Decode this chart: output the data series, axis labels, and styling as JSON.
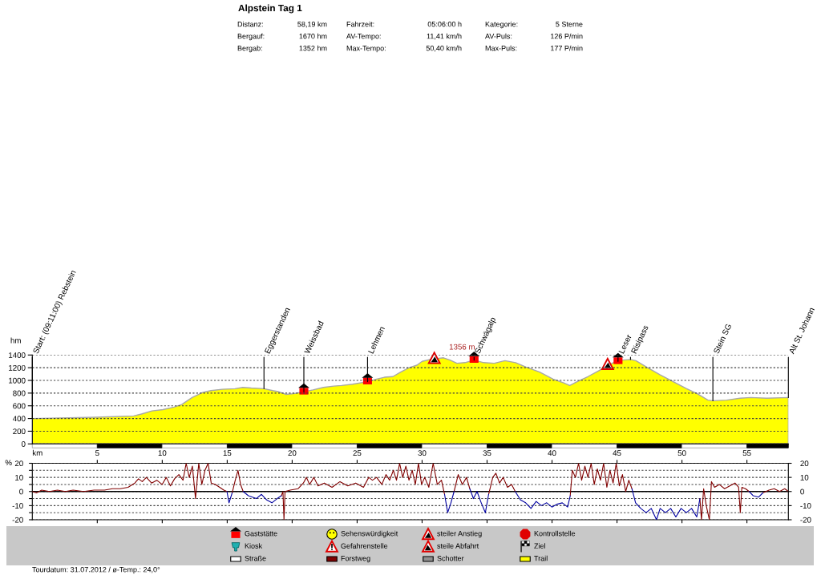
{
  "chart_data": [
    {
      "type": "other",
      "title": "Alpstein Tag 1",
      "annotations": [
        "Distanz:",
        "58,19 km",
        "Fahrzeit:",
        "05:06:00 h",
        "Kategorie:",
        "5 Sterne",
        "Bergauf:",
        "1670 hm",
        "AV-Tempo:",
        "11,41 km/h",
        "AV-Puls:",
        "126 P/min",
        "Bergab:",
        "1352 hm",
        "Max-Tempo:",
        "50,40 km/h",
        "Max-Puls:",
        "177 P/min"
      ]
    },
    {
      "type": "area",
      "x": [
        0,
        4.9,
        6.35,
        7.8,
        8.4,
        9.2,
        10.05,
        10.9,
        11.5,
        12.3,
        13.1,
        13.75,
        14.6,
        15.6,
        16.2,
        16.85,
        17.83,
        18.5,
        19.0,
        19.5,
        20.1,
        20.9,
        21.6,
        22.4,
        23.2,
        23.8,
        24.65,
        25.8,
        26.5,
        27.1,
        27.75,
        28.35,
        29.0,
        29.6,
        30.0,
        30.6,
        31.65,
        32.15,
        32.68,
        33.3,
        34.0,
        34.74,
        35.55,
        36.38,
        37.2,
        38.0,
        39.05,
        40.08,
        40.9,
        41.36,
        41.93,
        42.76,
        43.58,
        44.8,
        45.43,
        46.04,
        46.45,
        47.28,
        48.3,
        49.33,
        50.36,
        51.18,
        52.0,
        52.38,
        53.44,
        54.47,
        55.3,
        56.53,
        58.19
      ],
      "series": [
        {
          "color": "#ffff00",
          "values": [
            400,
            420,
            430,
            440,
            470,
            520,
            540,
            580,
            620,
            730,
            810,
            840,
            860,
            870,
            890,
            880,
            870,
            840,
            820,
            780,
            790,
            820,
            850,
            890,
            910,
            920,
            940,
            980,
            1020,
            1050,
            1060,
            1130,
            1200,
            1240,
            1300,
            1330,
            1356,
            1320,
            1270,
            1280,
            1320,
            1280,
            1270,
            1310,
            1280,
            1210,
            1130,
            1020,
            960,
            920,
            980,
            1060,
            1150,
            1290,
            1320,
            1330,
            1310,
            1210,
            1090,
            980,
            870,
            790,
            690,
            680,
            690,
            720,
            730,
            720,
            730
          ]
        }
      ],
      "xlim": [
        0,
        58.19
      ],
      "xticks": [
        5,
        10,
        15,
        20,
        25,
        30,
        35,
        40,
        45,
        50,
        55
      ],
      "ylim": [
        0,
        1400
      ],
      "yticks": [
        0,
        200,
        400,
        600,
        800,
        1000,
        1200,
        1400
      ],
      "xlabel": "km",
      "ylabel": "hm",
      "grid": "y",
      "annotations": [
        {
          "text": "Start: (09:11:00) Rebstein",
          "x": 0,
          "y": 400
        },
        {
          "text": "Eggerstanden",
          "x": 17.83,
          "y": 870
        },
        {
          "text": "Weissbad",
          "x": 20.9,
          "y": 820
        },
        {
          "text": "Lehmen",
          "x": 25.8,
          "y": 980
        },
        {
          "text": "Schwägalp",
          "x": 34.0,
          "y": 1320
        },
        {
          "text": "Leser",
          "x": 45.08,
          "y": 1300
        },
        {
          "text": "Risipass",
          "x": 46.04,
          "y": 1330
        },
        {
          "text": "Stein SG",
          "x": 52.38,
          "y": 680
        },
        {
          "text": "Alt St. Johann",
          "x": 58.19,
          "y": 730
        },
        {
          "text": "1356 m",
          "x": 31.65,
          "y": 1356
        }
      ]
    },
    {
      "type": "line",
      "x": [
        0,
        0.32,
        0.72,
        1.33,
        1.93,
        2.54,
        3.14,
        3.95,
        4.75,
        5.56,
        6.16,
        6.77,
        7.37,
        7.89,
        8.17,
        8.46,
        8.78,
        9.18,
        9.58,
        9.99,
        10.31,
        10.63,
        10.95,
        11.28,
        11.6,
        11.84,
        12.08,
        12.32,
        12.56,
        12.81,
        13.05,
        13.29,
        13.53,
        13.77,
        14.09,
        14.42,
        14.74,
        14.98,
        15.14,
        15.38,
        15.62,
        15.83,
        16.03,
        16.23,
        16.63,
        17.24,
        17.64,
        18.04,
        18.44,
        18.85,
        19.17,
        19.29,
        19.37,
        19.45,
        19.85,
        20.46,
        20.86,
        21.1,
        21.34,
        21.67,
        21.99,
        22.47,
        23.07,
        23.68,
        24.28,
        24.89,
        25.49,
        25.89,
        26.18,
        26.5,
        26.9,
        27.22,
        27.5,
        27.79,
        28.03,
        28.27,
        28.51,
        28.75,
        28.99,
        29.24,
        29.48,
        29.72,
        29.96,
        30.2,
        30.52,
        30.85,
        31.17,
        31.49,
        31.73,
        31.97,
        32.22,
        32.46,
        32.78,
        33.1,
        33.42,
        33.67,
        33.95,
        34.23,
        34.55,
        34.87,
        35.12,
        35.44,
        35.68,
        35.96,
        36.24,
        36.57,
        36.89,
        37.17,
        37.57,
        37.97,
        38.38,
        38.78,
        39.18,
        39.59,
        39.99,
        40.39,
        40.79,
        41.2,
        41.4,
        41.56,
        41.8,
        42.04,
        42.28,
        42.53,
        42.77,
        43.01,
        43.25,
        43.49,
        43.73,
        43.97,
        44.22,
        44.46,
        44.7,
        44.94,
        45.18,
        45.42,
        45.67,
        45.91,
        46.15,
        46.43,
        46.83,
        47.24,
        47.64,
        48.04,
        48.32,
        48.73,
        49.13,
        49.53,
        49.93,
        50.34,
        50.74,
        51.14,
        51.38,
        51.5,
        51.67,
        51.87,
        52.11,
        52.27,
        52.51,
        52.87,
        53.28,
        53.68,
        54.08,
        54.36,
        54.49,
        54.61,
        54.89,
        55.17,
        55.49,
        55.89,
        56.22,
        56.7,
        57.1,
        57.51,
        57.91,
        58.19
      ],
      "series": [
        {
          "color": "#800000",
          "values": [
            0,
            -1,
            1,
            0,
            1,
            0,
            1,
            0,
            1,
            1,
            2,
            2,
            3,
            6,
            9,
            7,
            10,
            6,
            8,
            5,
            10,
            4,
            9,
            12,
            8,
            20,
            10,
            18,
            -5,
            20,
            5,
            15,
            20,
            6,
            5,
            3,
            1,
            0,
            null,
            -1,
            8,
            15,
            5,
            0,
            null,
            null,
            null,
            null,
            null,
            null,
            -3,
            0,
            -20,
            0,
            1,
            2,
            6,
            10,
            5,
            10,
            4,
            6,
            3,
            7,
            4,
            6,
            3,
            10,
            8,
            10,
            5,
            12,
            8,
            15,
            8,
            20,
            10,
            18,
            8,
            15,
            5,
            20,
            5,
            10,
            3,
            20,
            5,
            8,
            -2,
            null,
            null,
            0,
            12,
            5,
            10,
            2,
            null,
            null,
            null,
            null,
            -2,
            10,
            13,
            6,
            10,
            3,
            5,
            0,
            null,
            null,
            null,
            null,
            null,
            null,
            null,
            null,
            null,
            null,
            -3,
            15,
            10,
            20,
            8,
            18,
            10,
            20,
            5,
            16,
            8,
            20,
            3,
            15,
            6,
            20,
            4,
            12,
            0,
            8,
            2,
            null,
            null,
            null,
            null,
            null,
            null,
            null,
            null,
            null,
            null,
            null,
            null,
            null,
            -5,
            -20,
            2,
            -10,
            -20,
            7,
            3,
            5,
            2,
            4,
            6,
            3,
            -15,
            3,
            2,
            0,
            null,
            null,
            -1,
            1,
            2,
            0,
            2,
            0
          ]
        },
        {
          "color": "#0000a0",
          "values": [
            null,
            null,
            null,
            null,
            null,
            null,
            null,
            null,
            null,
            null,
            null,
            null,
            null,
            null,
            null,
            null,
            null,
            null,
            null,
            null,
            null,
            null,
            null,
            null,
            null,
            null,
            null,
            null,
            null,
            null,
            null,
            null,
            null,
            null,
            null,
            null,
            null,
            0,
            -8,
            -1,
            null,
            null,
            null,
            0,
            -3,
            -5,
            -2,
            -6,
            -8,
            -5,
            -3,
            null,
            null,
            null,
            null,
            null,
            null,
            null,
            null,
            null,
            null,
            null,
            null,
            null,
            null,
            null,
            null,
            null,
            null,
            null,
            null,
            null,
            null,
            null,
            null,
            null,
            null,
            null,
            null,
            null,
            null,
            null,
            null,
            null,
            null,
            null,
            null,
            null,
            -2,
            -15,
            -8,
            0,
            null,
            null,
            null,
            2,
            -5,
            0,
            -8,
            -15,
            -2,
            null,
            null,
            null,
            null,
            null,
            null,
            0,
            -6,
            -8,
            -12,
            -7,
            -10,
            -8,
            -11,
            -9,
            -8,
            -11,
            -3,
            null,
            null,
            null,
            null,
            null,
            null,
            null,
            null,
            null,
            null,
            null,
            null,
            null,
            null,
            null,
            null,
            null,
            null,
            null,
            2,
            -8,
            -12,
            -15,
            -12,
            -20,
            -12,
            -15,
            -12,
            -18,
            -12,
            -15,
            -12,
            -18,
            -5,
            null,
            null,
            null,
            null,
            null,
            null,
            null,
            null,
            null,
            null,
            null,
            null,
            null,
            null,
            0,
            -3,
            -4,
            -1,
            null,
            null,
            null,
            null,
            null
          ]
        }
      ],
      "xlim": [
        0,
        58.19
      ],
      "xticks": [
        {
          "value": 5,
          "label": null
        },
        {
          "value": 10,
          "label": null
        },
        {
          "value": 15,
          "label": null
        },
        {
          "value": 20,
          "label": null
        },
        {
          "value": 25,
          "label": null
        },
        {
          "value": 30,
          "label": null
        },
        {
          "value": 35,
          "label": null
        },
        {
          "value": 40,
          "label": null
        },
        {
          "value": 45,
          "label": null
        },
        {
          "value": 50,
          "label": null
        },
        {
          "value": 55,
          "label": null
        }
      ],
      "ylim": [
        -20,
        20
      ],
      "yticks": [
        -20,
        {
          "value": -15,
          "label": null
        },
        -10,
        {
          "value": -5,
          "label": null
        },
        0,
        {
          "value": 5,
          "label": null
        },
        10,
        {
          "value": 15,
          "label": null
        },
        20
      ],
      "y2lim": [
        -20,
        20
      ],
      "y2ticks": [
        -20,
        -10,
        0,
        10,
        20
      ],
      "ylabel": "%",
      "grid": "y",
      "tick_labels": "y",
      "ref_lines": [
        {
          "axis": "y",
          "value": 0,
          "color": "#000000"
        }
      ]
    },
    {
      "type": "other",
      "annotations": [
        "Gaststätte",
        "Sehenswürdigkeit",
        "steiler Anstieg",
        "Kontrollstelle",
        "Kiosk",
        "Gefahrenstelle",
        "steile Abfahrt",
        "Ziel",
        "Straße",
        "Forstweg",
        "Schotter",
        "Trail",
        "Tourdatum: 31.07.2012 / ø-Temp.: 24,0°"
      ]
    }
  ]
}
